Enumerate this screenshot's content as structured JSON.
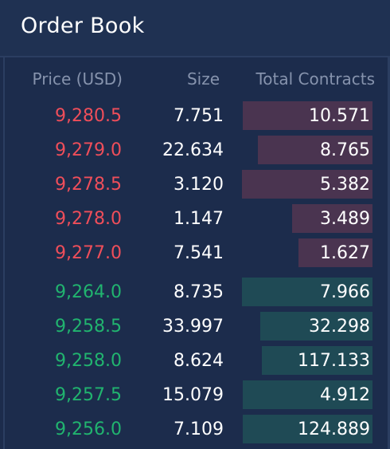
{
  "title": "Order Book",
  "headers": {
    "price": "Price (USD)",
    "size": "Size",
    "total": "Total Contracts"
  },
  "colors": {
    "ask_price": "#ef4e5a",
    "bid_price": "#21b46f",
    "ask_bar": "#4a3450",
    "bid_bar": "#1f4a55"
  },
  "asks": [
    {
      "price": "9,280.5",
      "size": "7.751",
      "total": "10.571",
      "depth_fraction": 0.98
    },
    {
      "price": "9,279.0",
      "size": "22.634",
      "total": "8.765",
      "depth_fraction": 0.87
    },
    {
      "price": "9,278.5",
      "size": "3.120",
      "total": "5.382",
      "depth_fraction": 0.99
    },
    {
      "price": "9,278.0",
      "size": "1.147",
      "total": "3.489",
      "depth_fraction": 0.61
    },
    {
      "price": "9,277.0",
      "size": "7.541",
      "total": "1.627",
      "depth_fraction": 0.56
    }
  ],
  "bids": [
    {
      "price": "9,264.0",
      "size": "8.735",
      "total": "7.966",
      "depth_fraction": 0.99
    },
    {
      "price": "9,258.5",
      "size": "33.997",
      "total": "32.298",
      "depth_fraction": 0.85
    },
    {
      "price": "9,258.0",
      "size": "8.624",
      "total": "117.133",
      "depth_fraction": 0.84
    },
    {
      "price": "9,257.5",
      "size": "15.079",
      "total": "4.912",
      "depth_fraction": 0.98
    },
    {
      "price": "9,256.0",
      "size": "7.109",
      "total": "124.889",
      "depth_fraction": 0.98
    }
  ]
}
